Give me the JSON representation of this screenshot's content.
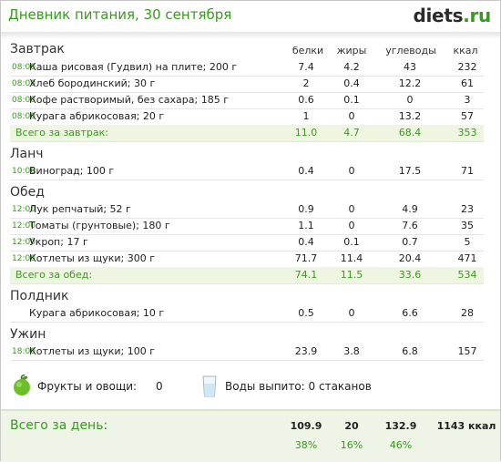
{
  "header": {
    "title": "Дневник питания, 30 сентября",
    "logo_main": "diets",
    "logo_tld": ".ru"
  },
  "columns": {
    "protein": "белки",
    "fat": "жиры",
    "carbs": "углеводы",
    "kcal": "ккал"
  },
  "meals": [
    {
      "title": "Завтрак",
      "items": [
        {
          "time": "08:00",
          "name": "Каша рисовая (Гудвил) на плите; 200 г",
          "protein": "7.4",
          "fat": "4.2",
          "carbs": "43",
          "kcal": "232"
        },
        {
          "time": "08:00",
          "name": "Хлеб бородинский; 30 г",
          "protein": "2",
          "fat": "0.4",
          "carbs": "12.2",
          "kcal": "61"
        },
        {
          "time": "08:00",
          "name": "Кофе растворимый, без сахара; 185 г",
          "protein": "0.6",
          "fat": "0.1",
          "carbs": "0",
          "kcal": "3"
        },
        {
          "time": "08:00",
          "name": "Курага абрикосовая; 20 г",
          "protein": "1",
          "fat": "0",
          "carbs": "13.2",
          "kcal": "57"
        }
      ],
      "total": {
        "label": "Всего за завтрак:",
        "protein": "11.0",
        "fat": "4.7",
        "carbs": "68.4",
        "kcal": "353"
      }
    },
    {
      "title": "Ланч",
      "items": [
        {
          "time": "10:00",
          "name": "Виноград; 100 г",
          "protein": "0.4",
          "fat": "0",
          "carbs": "17.5",
          "kcal": "71"
        }
      ]
    },
    {
      "title": "Обед",
      "items": [
        {
          "time": "12:00",
          "name": "Лук репчатый; 52 г",
          "protein": "0.9",
          "fat": "0",
          "carbs": "4.9",
          "kcal": "23"
        },
        {
          "time": "12:00",
          "name": "Томаты (грунтовые); 180 г",
          "protein": "1.1",
          "fat": "0",
          "carbs": "7.6",
          "kcal": "35"
        },
        {
          "time": "12:00",
          "name": "Укроп; 17 г",
          "protein": "0.4",
          "fat": "0.1",
          "carbs": "0.7",
          "kcal": "5"
        },
        {
          "time": "12:00",
          "name": "Котлеты из щуки; 300 г",
          "protein": "71.7",
          "fat": "11.4",
          "carbs": "20.4",
          "kcal": "471"
        }
      ],
      "total": {
        "label": "Всего за обед:",
        "protein": "74.1",
        "fat": "11.5",
        "carbs": "33.6",
        "kcal": "534"
      }
    },
    {
      "title": "Полдник",
      "items": [
        {
          "time": "",
          "name": "Курага абрикосовая; 10 г",
          "protein": "0.5",
          "fat": "0",
          "carbs": "6.6",
          "kcal": "28"
        }
      ]
    },
    {
      "title": "Ужин",
      "items": [
        {
          "time": "18:00",
          "name": "Котлеты из щуки; 100 г",
          "protein": "23.9",
          "fat": "3.8",
          "carbs": "6.8",
          "kcal": "157"
        }
      ]
    }
  ],
  "extras": {
    "fruits_label": "Фрукты и овощи:",
    "fruits_value": "0",
    "water_label": "Воды выпито: 0 стаканов"
  },
  "day_total": {
    "label": "Всего за день:",
    "protein": "109.9",
    "fat": "20",
    "carbs": "132.9",
    "kcal": "1143 ккал",
    "protein_pct": "38%",
    "fat_pct": "16%",
    "carbs_pct": "46%"
  },
  "colors": {
    "accent_green": "#3a9a1f",
    "total_bg": "#eef6e2"
  }
}
